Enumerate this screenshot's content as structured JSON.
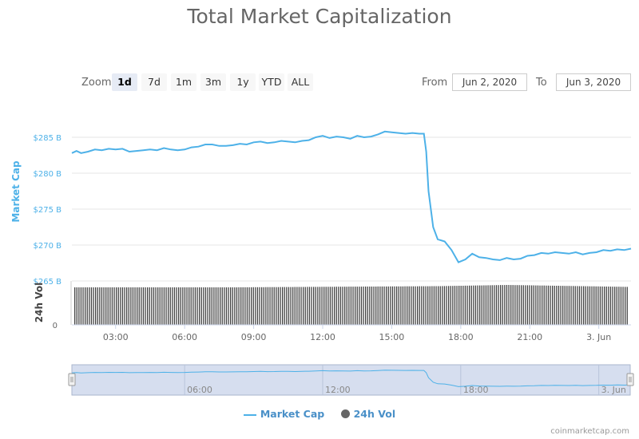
{
  "title": "Total Market Capitalization",
  "zoom": {
    "label": "Zoom",
    "buttons": [
      "1d",
      "7d",
      "1m",
      "3m",
      "1y",
      "YTD",
      "ALL"
    ],
    "active": "1d"
  },
  "range": {
    "from_label": "From",
    "from_value": "Jun 2, 2020",
    "to_label": "To",
    "to_value": "Jun 3, 2020"
  },
  "legend": {
    "market_cap": "Market Cap",
    "vol": "24h Vol"
  },
  "footer": "coinmarketcap.com",
  "colors": {
    "market_cap": "#4db1e8",
    "volume": "#444444",
    "navigator_fill": "#ccd6eb"
  },
  "chart_data": {
    "type": "line",
    "title": "Total Market Capitalization",
    "ylabel": "Market Cap",
    "y2label": "24h Vol",
    "y_ticks": [
      "$285 B",
      "$280 B",
      "$275 B",
      "$270 B",
      "$265 B"
    ],
    "y_tick_values": [
      285,
      280,
      275,
      270,
      265
    ],
    "y_range": [
      265,
      285
    ],
    "vol_ticks": [
      "0"
    ],
    "x_ticks": [
      "03:00",
      "06:00",
      "09:00",
      "12:00",
      "15:00",
      "18:00",
      "21:00",
      "3. Jun"
    ],
    "x_tick_hours": [
      3,
      6,
      9,
      12,
      15,
      18,
      21,
      24
    ],
    "x_range_hours": [
      1.1,
      25.4
    ],
    "navigator_ticks": [
      "06:00",
      "12:00",
      "18:00",
      "3. Jun"
    ],
    "navigator_tick_hours": [
      6,
      12,
      18,
      24
    ],
    "series": [
      {
        "name": "Market Cap",
        "unit": "B USD",
        "points": [
          [
            1.1,
            282.8
          ],
          [
            1.3,
            283.1
          ],
          [
            1.5,
            282.8
          ],
          [
            1.8,
            283.0
          ],
          [
            2.1,
            283.3
          ],
          [
            2.4,
            283.2
          ],
          [
            2.7,
            283.4
          ],
          [
            3.0,
            283.3
          ],
          [
            3.3,
            283.4
          ],
          [
            3.6,
            283.0
          ],
          [
            3.9,
            283.1
          ],
          [
            4.2,
            283.2
          ],
          [
            4.5,
            283.3
          ],
          [
            4.8,
            283.2
          ],
          [
            5.1,
            283.5
          ],
          [
            5.4,
            283.3
          ],
          [
            5.7,
            283.2
          ],
          [
            6.0,
            283.3
          ],
          [
            6.3,
            283.6
          ],
          [
            6.6,
            283.7
          ],
          [
            6.9,
            284.0
          ],
          [
            7.2,
            284.0
          ],
          [
            7.5,
            283.8
          ],
          [
            7.8,
            283.8
          ],
          [
            8.1,
            283.9
          ],
          [
            8.4,
            284.1
          ],
          [
            8.7,
            284.0
          ],
          [
            9.0,
            284.3
          ],
          [
            9.3,
            284.4
          ],
          [
            9.6,
            284.2
          ],
          [
            9.9,
            284.3
          ],
          [
            10.2,
            284.5
          ],
          [
            10.5,
            284.4
          ],
          [
            10.8,
            284.3
          ],
          [
            11.1,
            284.5
          ],
          [
            11.4,
            284.6
          ],
          [
            11.7,
            285.0
          ],
          [
            12.0,
            285.2
          ],
          [
            12.3,
            284.9
          ],
          [
            12.6,
            285.1
          ],
          [
            12.9,
            285.0
          ],
          [
            13.2,
            284.8
          ],
          [
            13.5,
            285.2
          ],
          [
            13.8,
            285.0
          ],
          [
            14.1,
            285.1
          ],
          [
            14.4,
            285.4
          ],
          [
            14.7,
            285.8
          ],
          [
            15.0,
            285.7
          ],
          [
            15.3,
            285.6
          ],
          [
            15.6,
            285.5
          ],
          [
            15.9,
            285.6
          ],
          [
            16.2,
            285.5
          ],
          [
            16.4,
            285.5
          ],
          [
            16.5,
            283.0
          ],
          [
            16.6,
            277.5
          ],
          [
            16.8,
            272.5
          ],
          [
            17.0,
            270.8
          ],
          [
            17.3,
            270.5
          ],
          [
            17.6,
            269.3
          ],
          [
            17.9,
            267.6
          ],
          [
            18.2,
            268.0
          ],
          [
            18.5,
            268.8
          ],
          [
            18.8,
            268.3
          ],
          [
            19.1,
            268.2
          ],
          [
            19.4,
            268.0
          ],
          [
            19.7,
            267.9
          ],
          [
            20.0,
            268.2
          ],
          [
            20.3,
            268.0
          ],
          [
            20.6,
            268.1
          ],
          [
            20.9,
            268.5
          ],
          [
            21.2,
            268.6
          ],
          [
            21.5,
            268.9
          ],
          [
            21.8,
            268.8
          ],
          [
            22.1,
            269.0
          ],
          [
            22.4,
            268.9
          ],
          [
            22.7,
            268.8
          ],
          [
            23.0,
            269.0
          ],
          [
            23.3,
            268.7
          ],
          [
            23.6,
            268.9
          ],
          [
            23.9,
            269.0
          ],
          [
            24.2,
            269.3
          ],
          [
            24.5,
            269.2
          ],
          [
            24.8,
            269.4
          ],
          [
            25.1,
            269.3
          ],
          [
            25.4,
            269.5
          ]
        ]
      },
      {
        "name": "24h Vol",
        "description": "relative bar heights (0 = axis, 1 = max)",
        "profile": [
          [
            1.1,
            0.94
          ],
          [
            8.0,
            0.94
          ],
          [
            11.0,
            0.95
          ],
          [
            14.0,
            0.96
          ],
          [
            17.0,
            0.97
          ],
          [
            20.0,
            1.0
          ],
          [
            25.4,
            0.95
          ]
        ]
      }
    ]
  }
}
